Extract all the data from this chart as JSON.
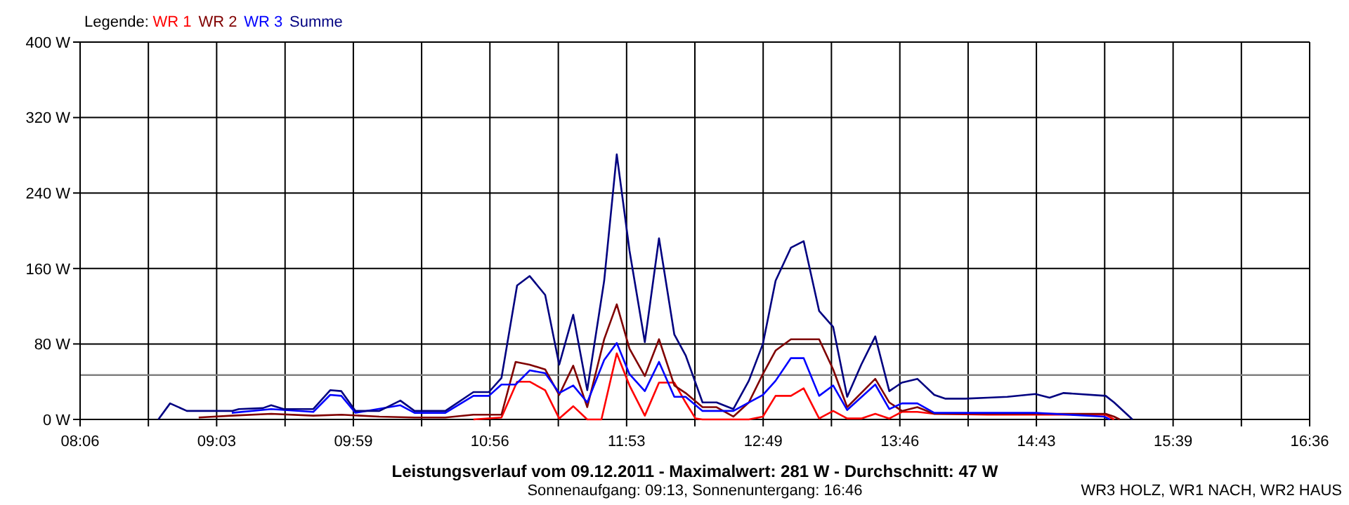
{
  "chart_data": {
    "type": "line",
    "title": "Leistungsverlauf vom 09.12.2011 - Maximalwert: 281 W - Durchschnitt: 47 W",
    "subtitle": "Sonnenaufgang: 09:13, Sonnenuntergang: 16:46",
    "annotations": [
      "WR3 HOLZ, WR1 NACH, WR2 HAUS"
    ],
    "legend_title": "Legende:",
    "legend": "top left",
    "grid": true,
    "xlim": [
      8.1,
      16.6
    ],
    "xticks": [
      {
        "value": 8.1,
        "label": "08:06"
      },
      {
        "value": 8.572,
        "label": null
      },
      {
        "value": 9.044,
        "label": "09:03"
      },
      {
        "value": 9.517,
        "label": null
      },
      {
        "value": 9.989,
        "label": "09:59"
      },
      {
        "value": 10.461,
        "label": null
      },
      {
        "value": 10.933,
        "label": "10:56"
      },
      {
        "value": 11.406,
        "label": null
      },
      {
        "value": 11.878,
        "label": "11:53"
      },
      {
        "value": 12.35,
        "label": null
      },
      {
        "value": 12.822,
        "label": "12:49"
      },
      {
        "value": 13.294,
        "label": null
      },
      {
        "value": 13.767,
        "label": "13:46"
      },
      {
        "value": 14.239,
        "label": null
      },
      {
        "value": 14.711,
        "label": "14:43"
      },
      {
        "value": 15.183,
        "label": null
      },
      {
        "value": 15.656,
        "label": "15:39"
      },
      {
        "value": 16.128,
        "label": null
      },
      {
        "value": 16.6,
        "label": "16:36"
      }
    ],
    "ylim": [
      0,
      400
    ],
    "yticks": [
      {
        "value": 0,
        "label": "0 W"
      },
      {
        "value": 80,
        "label": "80 W"
      },
      {
        "value": 160,
        "label": "160 W"
      },
      {
        "value": 240,
        "label": "240 W"
      },
      {
        "value": 320,
        "label": "320 W"
      },
      {
        "value": 400,
        "label": "400 W"
      }
    ],
    "ref_lines": [
      {
        "axis": "y",
        "value": 47,
        "color": "#808080"
      }
    ],
    "series": [
      {
        "name": "WR 1",
        "color": "#ff0000",
        "x": [
          10.819,
          11.013,
          11.121,
          11.208,
          11.315,
          11.412,
          11.509,
          11.606,
          11.704,
          11.81,
          11.898,
          12.004,
          12.102,
          12.208,
          12.286,
          12.354,
          12.403,
          12.723,
          12.82,
          12.908,
          13.014,
          13.102,
          13.209,
          13.306,
          13.403,
          13.5,
          13.597,
          13.694,
          13.781,
          13.888,
          14.005,
          14.374,
          14.704,
          15.19,
          15.248
        ],
        "values": [
          0,
          2,
          40,
          40,
          31,
          1,
          14,
          0,
          0,
          70,
          36,
          4,
          39,
          39,
          18,
          1,
          0,
          0,
          3,
          25,
          25,
          33,
          1,
          9,
          1,
          1,
          6,
          1,
          8,
          8,
          6,
          5,
          5,
          5,
          0
        ]
      },
      {
        "name": "WR 2",
        "color": "#800000",
        "x": [
          8.92,
          9.149,
          9.421,
          9.712,
          9.906,
          10.169,
          10.412,
          10.625,
          10.819,
          11.013,
          11.111,
          11.208,
          11.315,
          11.412,
          11.509,
          11.606,
          11.723,
          11.81,
          11.898,
          12.004,
          12.102,
          12.208,
          12.286,
          12.403,
          12.5,
          12.616,
          12.723,
          12.82,
          12.908,
          13.014,
          13.102,
          13.209,
          13.306,
          13.403,
          13.597,
          13.694,
          13.781,
          13.888,
          14.005,
          14.374,
          14.704,
          15.19,
          15.248,
          15.287
        ],
        "values": [
          2,
          4,
          6,
          4,
          5,
          3,
          2,
          2,
          5,
          5,
          61,
          58,
          53,
          26,
          57,
          13,
          85,
          122,
          75,
          46,
          85,
          36,
          28,
          13,
          13,
          3,
          18,
          48,
          73,
          85,
          85,
          85,
          53,
          13,
          43,
          18,
          9,
          13,
          6,
          6,
          6,
          6,
          3,
          0
        ]
      },
      {
        "name": "WR 3",
        "color": "#0000ff",
        "x": [
          9.149,
          9.421,
          9.712,
          9.829,
          9.906,
          10.004,
          10.314,
          10.412,
          10.625,
          10.819,
          10.926,
          11.013,
          11.111,
          11.208,
          11.315,
          11.412,
          11.509,
          11.606,
          11.723,
          11.81,
          11.898,
          12.004,
          12.102,
          12.208,
          12.286,
          12.403,
          12.616,
          12.723,
          12.82,
          12.908,
          13.014,
          13.102,
          13.209,
          13.306,
          13.403,
          13.597,
          13.694,
          13.781,
          13.888,
          14.005,
          14.374,
          14.704,
          15.18,
          15.218
        ],
        "values": [
          7,
          11,
          8,
          26,
          25,
          7,
          15,
          7,
          7,
          25,
          25,
          37,
          37,
          52,
          49,
          28,
          36,
          18,
          63,
          81,
          48,
          30,
          61,
          24,
          24,
          9,
          9,
          18,
          26,
          41,
          65,
          65,
          25,
          36,
          10,
          37,
          11,
          17,
          17,
          7,
          7,
          7,
          3,
          0
        ]
      },
      {
        "name": "Summe",
        "color": "#000080",
        "x": [
          8.641,
          8.722,
          8.838,
          9.149,
          9.198,
          9.363,
          9.421,
          9.508,
          9.712,
          9.829,
          9.906,
          10.004,
          10.169,
          10.314,
          10.412,
          10.625,
          10.819,
          10.926,
          11.013,
          11.121,
          11.208,
          11.315,
          11.412,
          11.509,
          11.606,
          11.723,
          11.81,
          11.898,
          12.004,
          12.102,
          12.208,
          12.286,
          12.403,
          12.5,
          12.616,
          12.723,
          12.82,
          12.908,
          13.014,
          13.102,
          13.209,
          13.306,
          13.403,
          13.5,
          13.597,
          13.694,
          13.781,
          13.888,
          14.005,
          14.083,
          14.219,
          14.374,
          14.51,
          14.704,
          14.802,
          14.899,
          15.19,
          15.248,
          15.375
        ],
        "values": [
          0,
          17,
          9,
          9,
          11,
          12,
          15,
          11,
          11,
          31,
          30,
          9,
          9,
          20,
          9,
          9,
          29,
          29,
          44,
          142,
          152,
          132,
          58,
          111,
          31,
          147,
          281,
          179,
          82,
          192,
          90,
          68,
          18,
          18,
          11,
          41,
          80,
          147,
          182,
          189,
          115,
          98,
          24,
          58,
          88,
          30,
          39,
          43,
          26,
          22,
          22,
          23,
          24,
          27,
          23,
          28,
          25,
          18,
          0
        ]
      }
    ]
  }
}
